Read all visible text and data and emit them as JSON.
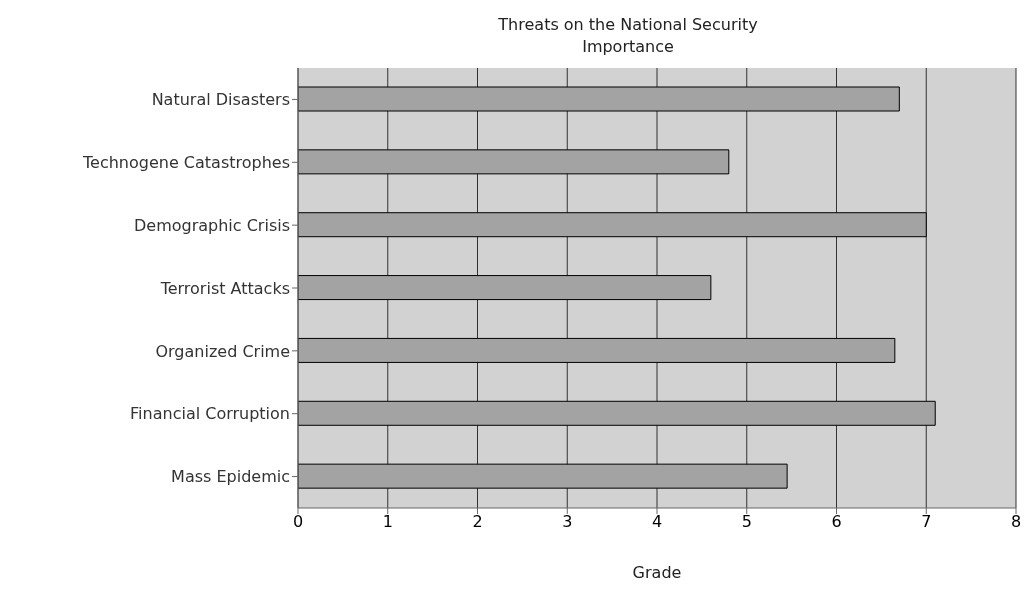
{
  "chart_data": {
    "type": "bar",
    "orientation": "horizontal",
    "title": "Threats on the National Security Importance",
    "xlabel": "Grade",
    "categories": [
      "Natural Disasters",
      "Technogene Catastrophes",
      "Demographic Crisis",
      "Terrorist Attacks",
      "Organized Crime",
      "Financial Corruption",
      "Mass Epidemic"
    ],
    "values": [
      6.7,
      4.8,
      7.0,
      4.6,
      6.65,
      7.1,
      5.45
    ],
    "color": "#a3a3a3",
    "xlim": [
      0,
      8
    ],
    "xticks": [
      0,
      1,
      2,
      3,
      4,
      5,
      6,
      7,
      8
    ],
    "grid": "x"
  }
}
